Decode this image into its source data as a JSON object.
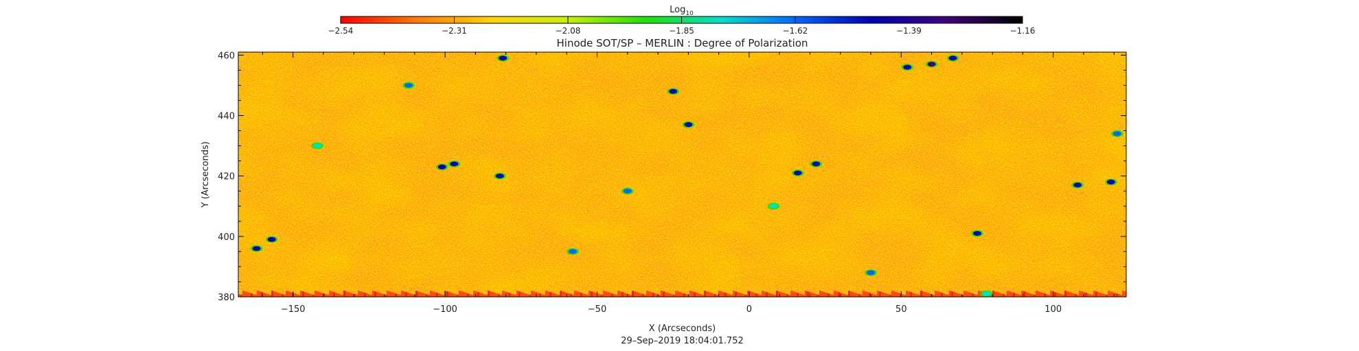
{
  "chart_data": {
    "type": "heatmap",
    "title": "Hinode SOT/SP – MERLIN : Degree of Polarization",
    "xlabel": "X (Arcseconds)",
    "ylabel": "Y (Arcseconds)",
    "timestamp": "29–Sep–2019 18:04:01.752",
    "xlim": [
      -168,
      124
    ],
    "ylim": [
      380,
      461
    ],
    "x_ticks": [
      -150,
      -100,
      -50,
      0,
      50,
      100
    ],
    "x_tick_labels": [
      "−150",
      "−100",
      "−50",
      "0",
      "50",
      "100"
    ],
    "y_ticks": [
      380,
      400,
      420,
      440,
      460
    ],
    "y_tick_labels": [
      "380",
      "400",
      "420",
      "440",
      "460"
    ],
    "colorbar": {
      "label_base": "Log",
      "label_sub": "10",
      "range": [
        -2.54,
        -1.16
      ],
      "ticks": [
        -2.54,
        -2.31,
        -2.08,
        -1.85,
        -1.62,
        -1.39,
        -1.16
      ],
      "tick_labels": [
        "−2.54",
        "−2.31",
        "−2.08",
        "−1.85",
        "−1.62",
        "−1.39",
        "−1.16"
      ],
      "colors": [
        "#ff0000",
        "#ff7a00",
        "#ffd400",
        "#c8f000",
        "#22e000",
        "#00e0c8",
        "#0068ff",
        "#0000b0",
        "#40007a",
        "#000000"
      ]
    },
    "grid": false,
    "features": [
      {
        "x": -101,
        "y": 423,
        "v": -1.42
      },
      {
        "x": -97,
        "y": 424,
        "v": -1.45
      },
      {
        "x": -20,
        "y": 437,
        "v": -1.4
      },
      {
        "x": -25,
        "y": 448,
        "v": -1.44
      },
      {
        "x": 22,
        "y": 424,
        "v": -1.45
      },
      {
        "x": 16,
        "y": 421,
        "v": -1.48
      },
      {
        "x": 52,
        "y": 456,
        "v": -1.4
      },
      {
        "x": 60,
        "y": 457,
        "v": -1.38
      },
      {
        "x": 67,
        "y": 459,
        "v": -1.4
      },
      {
        "x": 75,
        "y": 401,
        "v": -1.48
      },
      {
        "x": 119,
        "y": 418,
        "v": -1.5
      },
      {
        "x": 108,
        "y": 417,
        "v": -1.52
      },
      {
        "x": -162,
        "y": 396,
        "v": -1.5
      },
      {
        "x": -157,
        "y": 399,
        "v": -1.52
      },
      {
        "x": -81,
        "y": 459,
        "v": -1.5
      },
      {
        "x": -112,
        "y": 450,
        "v": -1.55
      },
      {
        "x": -82,
        "y": 420,
        "v": -1.5
      },
      {
        "x": -58,
        "y": 395,
        "v": -1.55
      },
      {
        "x": 121,
        "y": 434,
        "v": -1.55
      },
      {
        "x": -40,
        "y": 415,
        "v": -1.6
      },
      {
        "x": 8,
        "y": 410,
        "v": -1.7
      },
      {
        "x": -142,
        "y": 430,
        "v": -1.72
      },
      {
        "x": 78,
        "y": 381,
        "v": -1.72
      },
      {
        "x": 40,
        "y": 388,
        "v": -1.6
      }
    ]
  }
}
